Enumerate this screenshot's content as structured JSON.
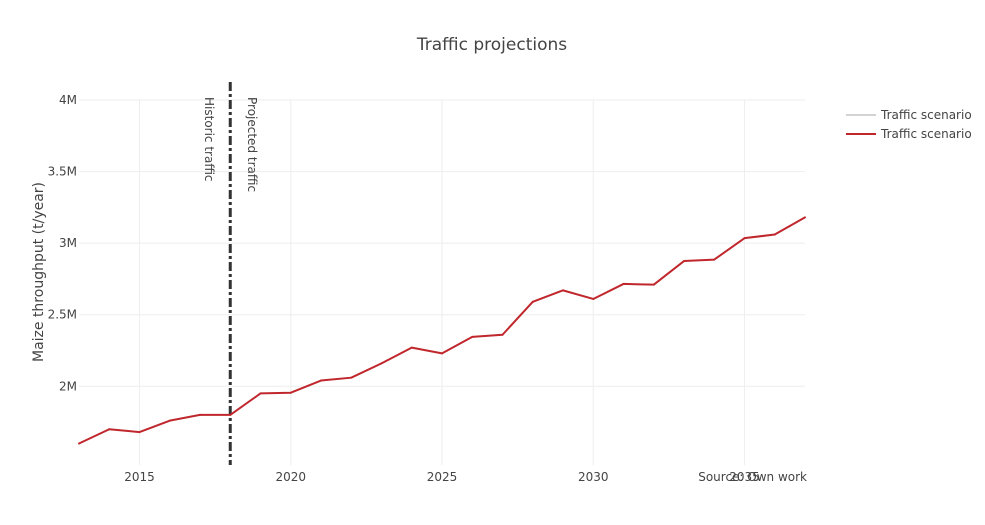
{
  "chart_data": {
    "type": "line",
    "title": "Traffic projections",
    "xlabel": "",
    "ylabel": "Maize throughput (t/year)",
    "xlim": [
      2013,
      2037
    ],
    "ylim": [
      1450000,
      4000000
    ],
    "x_ticks": [
      2015,
      2020,
      2025,
      2030,
      2035
    ],
    "x_tick_labels": [
      "2015",
      "2020",
      "2025",
      "2030",
      "2035"
    ],
    "y_ticks": [
      2000000,
      2500000,
      3000000,
      3500000,
      4000000
    ],
    "y_tick_labels": [
      "2M",
      "2.5M",
      "3M",
      "3.5M",
      "4M"
    ],
    "grid": true,
    "legend_position": "top-right",
    "series": [
      {
        "name": "Traffic scenario",
        "color": "#d3d3d3",
        "x": [],
        "y": []
      },
      {
        "name": "Traffic scenario",
        "color": "#c0272d",
        "x": [
          2013,
          2014,
          2015,
          2016,
          2017,
          2018,
          2019,
          2020,
          2021,
          2022,
          2023,
          2024,
          2025,
          2026,
          2027,
          2028,
          2029,
          2030,
          2031,
          2032,
          2033,
          2034,
          2035,
          2036,
          2037
        ],
        "y": [
          1600000,
          1700000,
          1680000,
          1760000,
          1800000,
          1800000,
          1950000,
          1955000,
          2040000,
          2060000,
          2160000,
          2270000,
          2230000,
          2345000,
          2360000,
          2590000,
          2670000,
          2610000,
          2715000,
          2710000,
          2875000,
          2885000,
          3035000,
          3060000,
          3180000
        ]
      }
    ],
    "vline": {
      "x": 2018,
      "style": "dashdot",
      "color": "#333333"
    },
    "annotations": {
      "historic": "Historic traffic",
      "projected": "Projected traffic",
      "source": "Source: Own work"
    }
  }
}
